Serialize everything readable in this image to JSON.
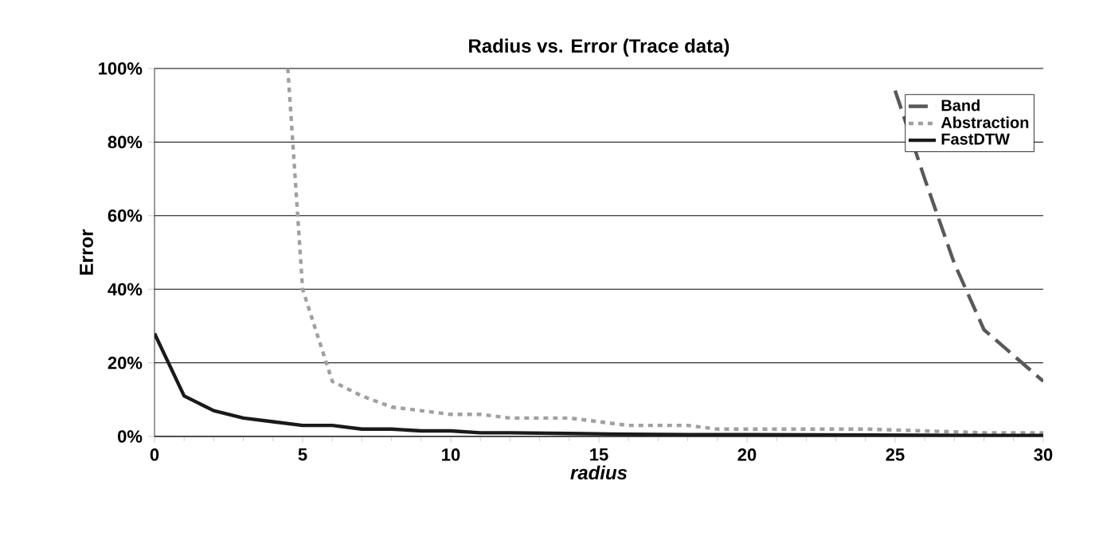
{
  "chart_data": {
    "type": "line",
    "title": "Radius vs. Error (Trace data)",
    "xlabel": "radius",
    "ylabel": "Error",
    "xlim": [
      0,
      30
    ],
    "xticks": [
      0,
      5,
      10,
      15,
      20,
      25,
      30
    ],
    "ylim": [
      0,
      100
    ],
    "yticks": [
      {
        "value": 0,
        "label": "0%"
      },
      {
        "value": 20,
        "label": "20%"
      },
      {
        "value": 40,
        "label": "40%"
      },
      {
        "value": 60,
        "label": "60%"
      },
      {
        "value": 80,
        "label": "80%"
      },
      {
        "value": 100,
        "label": "100%"
      }
    ],
    "grid": "y",
    "legend": "top right",
    "marker": "none",
    "series": [
      {
        "name": "Band",
        "color": "#595959",
        "line_style": "dashed",
        "x": [
          25,
          26,
          27,
          28,
          29,
          30
        ],
        "values": [
          94,
          70,
          47,
          29,
          22,
          15
        ]
      },
      {
        "name": "Abstraction",
        "color": "#a0a0a0",
        "line_style": "dotted",
        "x": [
          4.5,
          5,
          6,
          7,
          8,
          9,
          10,
          11,
          12,
          13,
          14,
          15,
          16,
          17,
          18,
          19,
          20,
          22,
          24,
          26,
          28,
          30
        ],
        "values": [
          100,
          40,
          15,
          11,
          8,
          7,
          6,
          6,
          5,
          5,
          5,
          4,
          3,
          3,
          3,
          2,
          2,
          2,
          2,
          1.5,
          1,
          1
        ]
      },
      {
        "name": "FastDTW",
        "color": "#1a1a1a",
        "line_style": "solid",
        "x": [
          0,
          1,
          2,
          3,
          4,
          5,
          6,
          7,
          8,
          9,
          10,
          11,
          12,
          14,
          16,
          18,
          20,
          24,
          28,
          30
        ],
        "values": [
          28,
          11,
          7,
          5,
          4,
          3,
          3,
          2,
          2,
          1.5,
          1.5,
          1,
          1,
          0.8,
          0.6,
          0.5,
          0.5,
          0.4,
          0.3,
          0.3
        ]
      }
    ]
  }
}
